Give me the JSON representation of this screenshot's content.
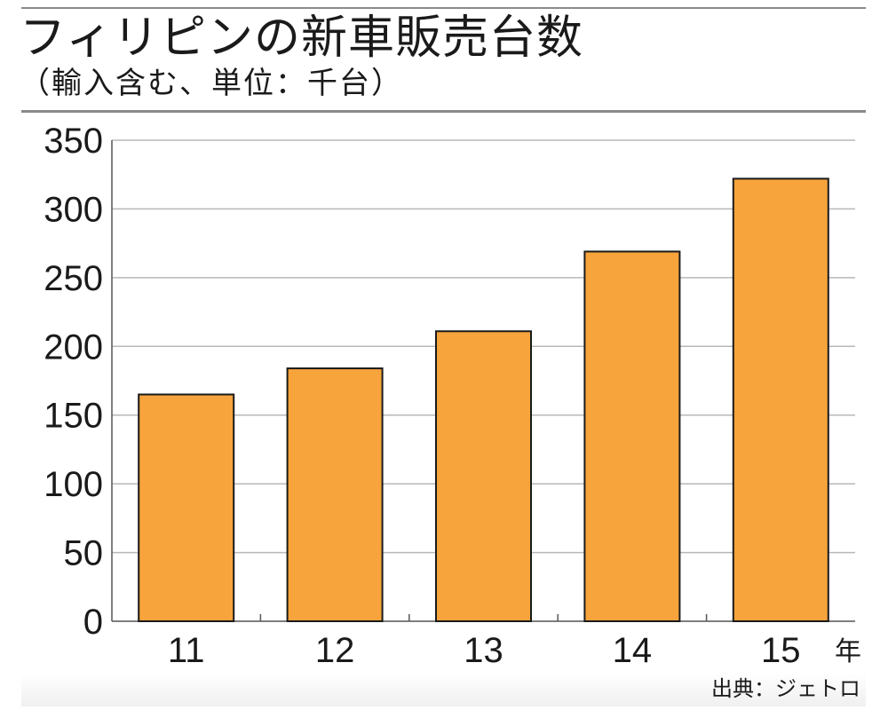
{
  "title": "フィリピンの新車販売台数",
  "subtitle": "（輸入含む、単位：千台）",
  "source": "出典：ジェトロ",
  "colors": {
    "bar_fill": "#f7a43c",
    "bar_stroke": "#1a1a1a",
    "grid": "#b8b8b8",
    "axis": "#555555",
    "marker_line": "#e0609a"
  },
  "chart_data": {
    "type": "bar",
    "categories": [
      "11",
      "12",
      "13",
      "14",
      "15"
    ],
    "values": [
      165,
      184,
      211,
      269,
      322
    ],
    "xlabel": "年",
    "ylabel": "",
    "ylim": [
      0,
      350
    ],
    "yticks": [
      0,
      50,
      100,
      150,
      200,
      250,
      300,
      350
    ],
    "grid": true
  }
}
